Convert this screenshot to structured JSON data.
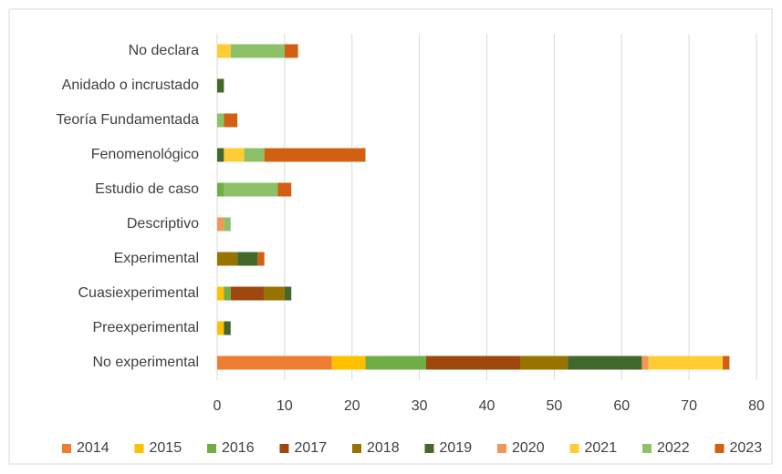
{
  "chart_data": {
    "type": "stacked-barh",
    "categories": [
      "No declara",
      "Anidado o incrustado",
      "Teoría Fundamentada",
      "Fenomenológico",
      "Estudio de caso",
      "Descriptivo",
      "Experimental",
      "Cuasiexperimental",
      "Preexperimental",
      "No experimental"
    ],
    "series": [
      {
        "name": "2014",
        "color": "#ed7d31",
        "values": [
          0,
          0,
          0,
          0,
          0,
          0,
          0,
          0,
          0,
          17
        ]
      },
      {
        "name": "2015",
        "color": "#ffc000",
        "values": [
          0,
          0,
          0,
          0,
          0,
          0,
          0,
          1,
          1,
          5
        ]
      },
      {
        "name": "2016",
        "color": "#70ad47",
        "values": [
          0,
          0,
          0,
          0,
          1,
          0,
          0,
          1,
          0,
          9
        ]
      },
      {
        "name": "2017",
        "color": "#9e480e",
        "values": [
          0,
          0,
          0,
          0,
          0,
          0,
          0,
          5,
          0,
          14
        ]
      },
      {
        "name": "2018",
        "color": "#997300",
        "values": [
          0,
          0,
          0,
          0,
          0,
          0,
          3,
          3,
          0,
          7
        ]
      },
      {
        "name": "2019",
        "color": "#43682b",
        "values": [
          0,
          1,
          0,
          1,
          0,
          0,
          3,
          1,
          1,
          11
        ]
      },
      {
        "name": "2020",
        "color": "#f1975a",
        "values": [
          0,
          0,
          0,
          0,
          0,
          1,
          0,
          0,
          0,
          1
        ]
      },
      {
        "name": "2021",
        "color": "#ffcd33",
        "values": [
          2,
          0,
          0,
          3,
          0,
          0,
          0,
          0,
          0,
          11
        ]
      },
      {
        "name": "2022",
        "color": "#8cc168",
        "values": [
          8,
          0,
          1,
          3,
          8,
          1,
          0,
          0,
          0,
          0
        ]
      },
      {
        "name": "2023",
        "color": "#d26012",
        "values": [
          2,
          0,
          2,
          15,
          2,
          0,
          1,
          0,
          0,
          1
        ]
      }
    ],
    "xlim": [
      0,
      80
    ],
    "xticks": [
      0,
      10,
      20,
      30,
      40,
      50,
      60,
      70,
      80
    ],
    "grid": true,
    "legend": "bottom"
  }
}
